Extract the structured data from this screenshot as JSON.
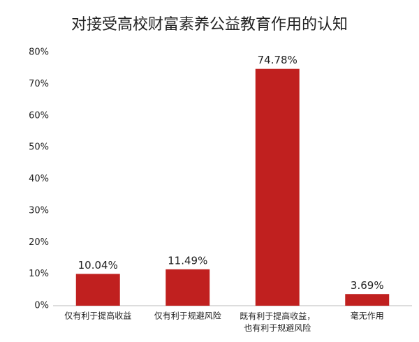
{
  "chart_data": {
    "type": "bar",
    "title": "对接受高校财富素养公益教育作用的认知",
    "categories": [
      "仅有利于提高收益",
      "仅有利于规避风险",
      "既有利于提高收益，\n也有利于规避风险",
      "毫无作用"
    ],
    "values": [
      10.04,
      11.49,
      74.78,
      3.69
    ],
    "value_labels": [
      "10.04%",
      "11.49%",
      "74.78%",
      "3.69%"
    ],
    "color": "#c0201f",
    "ylim": [
      0,
      80
    ],
    "yticks": [
      {
        "value": 0,
        "label": "0%"
      },
      {
        "value": 10,
        "label": "10%"
      },
      {
        "value": 20,
        "label": "20%"
      },
      {
        "value": 30,
        "label": "30%"
      },
      {
        "value": 40,
        "label": "40%"
      },
      {
        "value": 50,
        "label": "50%"
      },
      {
        "value": 60,
        "label": "60%"
      },
      {
        "value": 70,
        "label": "70%"
      },
      {
        "value": 80,
        "label": "80%"
      }
    ],
    "grid": false
  }
}
